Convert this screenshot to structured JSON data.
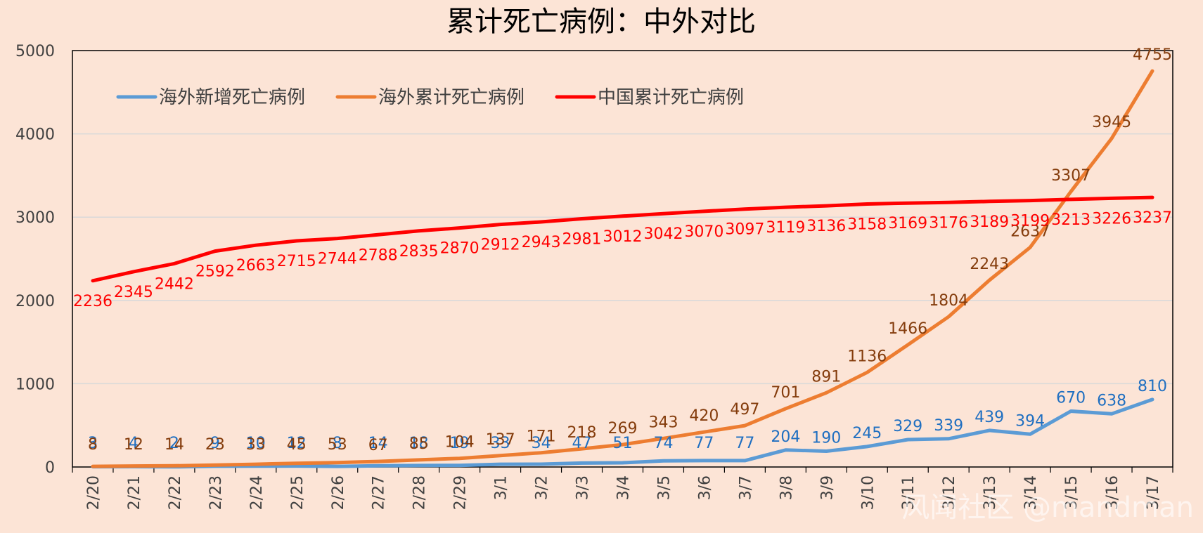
{
  "chart_data": {
    "type": "line",
    "title": "累计死亡病例：中外对比",
    "categories": [
      "2/20",
      "2/21",
      "2/22",
      "2/23",
      "2/24",
      "2/25",
      "2/26",
      "2/27",
      "2/28",
      "2/29",
      "3/1",
      "3/2",
      "3/3",
      "3/4",
      "3/5",
      "3/6",
      "3/7",
      "3/8",
      "3/9",
      "3/10",
      "3/11",
      "3/12",
      "3/13",
      "3/14",
      "3/15",
      "3/16",
      "3/17"
    ],
    "ylim": [
      0,
      5000
    ],
    "yticks": [
      0,
      1000,
      2000,
      3000,
      4000,
      5000
    ],
    "grid": "horizontal",
    "legend_position": "top-left",
    "series": [
      {
        "name": "海外新增死亡病例",
        "color": "#5b9bd5",
        "label_color": "#1f6fc1",
        "values": [
          3,
          4,
          2,
          9,
          10,
          12,
          8,
          14,
          18,
          19,
          33,
          34,
          47,
          51,
          74,
          77,
          77,
          204,
          190,
          245,
          329,
          339,
          439,
          394,
          670,
          638,
          810
        ]
      },
      {
        "name": "海外累计死亡病例",
        "color": "#ed7d31",
        "label_color": "#843c0c",
        "values": [
          8,
          12,
          14,
          23,
          33,
          45,
          53,
          67,
          85,
          104,
          137,
          171,
          218,
          269,
          343,
          420,
          497,
          701,
          891,
          1136,
          1466,
          1804,
          2243,
          2637,
          3307,
          3945,
          4755
        ]
      },
      {
        "name": "中国累计死亡病例",
        "color": "#ff0000",
        "label_color": "#ff0000",
        "values": [
          2236,
          2345,
          2442,
          2592,
          2663,
          2715,
          2744,
          2788,
          2835,
          2870,
          2912,
          2943,
          2981,
          3012,
          3042,
          3070,
          3097,
          3119,
          3136,
          3158,
          3169,
          3176,
          3189,
          3199,
          3213,
          3226,
          3237
        ]
      }
    ]
  },
  "watermark": "风闻社区 @mandman"
}
